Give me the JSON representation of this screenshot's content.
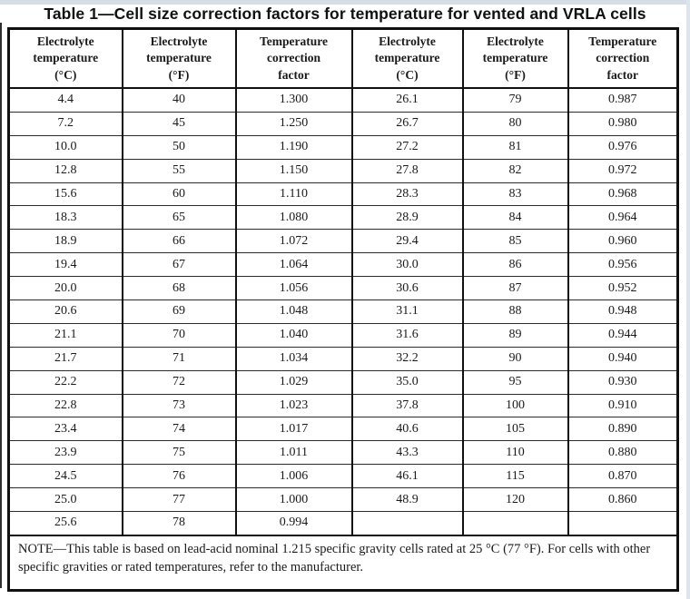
{
  "title": "Table 1—Cell size correction factors for temperature for vented and VRLA cells",
  "table": {
    "headers": [
      "Electrolyte\ntemperature\n(°C)",
      "Electrolyte\ntemperature\n(°F)",
      "Temperature\ncorrection\nfactor",
      "Electrolyte\ntemperature\n(°C)",
      "Electrolyte\ntemperature\n(°F)",
      "Temperature\ncorrection\nfactor"
    ],
    "rows": [
      [
        "4.4",
        "40",
        "1.300",
        "26.1",
        "79",
        "0.987"
      ],
      [
        "7.2",
        "45",
        "1.250",
        "26.7",
        "80",
        "0.980"
      ],
      [
        "10.0",
        "50",
        "1.190",
        "27.2",
        "81",
        "0.976"
      ],
      [
        "12.8",
        "55",
        "1.150",
        "27.8",
        "82",
        "0.972"
      ],
      [
        "15.6",
        "60",
        "1.110",
        "28.3",
        "83",
        "0.968"
      ],
      [
        "18.3",
        "65",
        "1.080",
        "28.9",
        "84",
        "0.964"
      ],
      [
        "18.9",
        "66",
        "1.072",
        "29.4",
        "85",
        "0.960"
      ],
      [
        "19.4",
        "67",
        "1.064",
        "30.0",
        "86",
        "0.956"
      ],
      [
        "20.0",
        "68",
        "1.056",
        "30.6",
        "87",
        "0.952"
      ],
      [
        "20.6",
        "69",
        "1.048",
        "31.1",
        "88",
        "0.948"
      ],
      [
        "21.1",
        "70",
        "1.040",
        "31.6",
        "89",
        "0.944"
      ],
      [
        "21.7",
        "71",
        "1.034",
        "32.2",
        "90",
        "0.940"
      ],
      [
        "22.2",
        "72",
        "1.029",
        "35.0",
        "95",
        "0.930"
      ],
      [
        "22.8",
        "73",
        "1.023",
        "37.8",
        "100",
        "0.910"
      ],
      [
        "23.4",
        "74",
        "1.017",
        "40.6",
        "105",
        "0.890"
      ],
      [
        "23.9",
        "75",
        "1.011",
        "43.3",
        "110",
        "0.880"
      ],
      [
        "24.5",
        "76",
        "1.006",
        "46.1",
        "115",
        "0.870"
      ],
      [
        "25.0",
        "77",
        "1.000",
        "48.9",
        "120",
        "0.860"
      ],
      [
        "25.6",
        "78",
        "0.994",
        "",
        "",
        ""
      ]
    ],
    "note": "NOTE—This table is based on lead-acid nominal 1.215 specific gravity cells rated at 25 °C (77 °F). For cells with other specific gravities or rated temperatures, refer to the manufacturer."
  }
}
